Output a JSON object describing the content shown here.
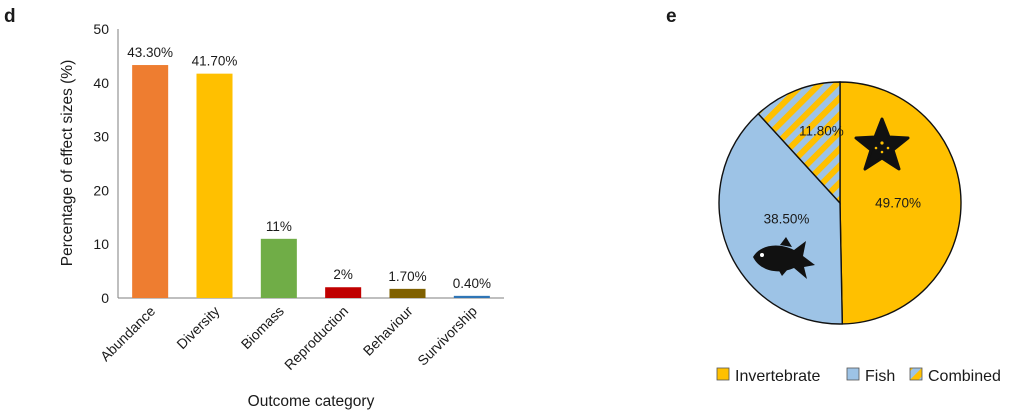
{
  "panels": {
    "left_letter": "d",
    "right_letter": "e"
  },
  "chart_data": [
    {
      "type": "bar",
      "title": "",
      "xlabel": "Outcome category",
      "ylabel": "Percentage of effect sizes (%)",
      "ylim": [
        0,
        50
      ],
      "yticks": [
        0,
        10,
        20,
        30,
        40,
        50
      ],
      "grid": false,
      "categories": [
        "Abundance",
        "Diversity",
        "Biomass",
        "Reproduction",
        "Behaviour",
        "Survivorship"
      ],
      "values": [
        43.3,
        41.7,
        11,
        2,
        1.7,
        0.4
      ],
      "data_labels": [
        "43.30%",
        "41.70%",
        "11%",
        "2%",
        "1.70%",
        "0.40%"
      ],
      "colors": [
        "#ee7d30",
        "#ffc000",
        "#70ad47",
        "#c00000",
        "#7f6000",
        "#2e75b6"
      ]
    },
    {
      "type": "pie",
      "title": "",
      "legend_placement": "bottom",
      "slices": [
        {
          "label": "Invertebrate",
          "value": 49.7,
          "display": "49.70%",
          "color": "#ffc000",
          "pattern": "solid",
          "icon": "starfish-icon"
        },
        {
          "label": "Fish",
          "value": 38.5,
          "display": "38.50%",
          "color": "#9dc3e6",
          "pattern": "solid",
          "icon": "fish-icon"
        },
        {
          "label": "Combined",
          "value": 11.8,
          "display": "11.80%",
          "color": "#9dc3e6",
          "pattern": "diagonal-stripes",
          "stripe_color": "#ffc000"
        }
      ]
    }
  ]
}
